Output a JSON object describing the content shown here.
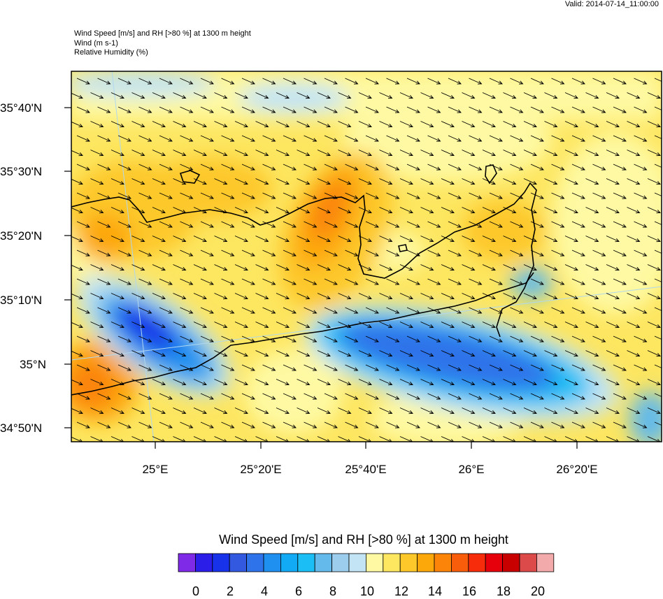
{
  "valid_label": "Valid: 2014-07-14_11:00:00",
  "header": {
    "line1": "Wind Speed [m/s] and RH [>80 %] at 1300 m height",
    "line2": "Wind   (m s-1)",
    "line3": "Relative Humidity   (%)"
  },
  "axes": {
    "lat_labels": [
      "35°40'N",
      "35°30'N",
      "35°20'N",
      "35°10'N",
      "35°N",
      "34°50'N"
    ],
    "lon_labels": [
      "25°E",
      "25°20'E",
      "25°40'E",
      "26°E",
      "26°20'E"
    ]
  },
  "colorbar": {
    "title": "Wind Speed [m/s] and RH [>80 %] at 1300 m height",
    "labels": [
      "0",
      "2",
      "4",
      "6",
      "8",
      "10",
      "12",
      "14",
      "16",
      "18",
      "20"
    ],
    "colors": [
      "#7f2ae6",
      "#2b1ee8",
      "#1732e8",
      "#3359e0",
      "#2f73ea",
      "#1f8ff0",
      "#13aaf5",
      "#1cbff5",
      "#64baea",
      "#9ccdec",
      "#c2e4f4",
      "#fef9a2",
      "#fde660",
      "#fdc82a",
      "#fda80a",
      "#fb8409",
      "#f85d0c",
      "#f62c0b",
      "#e6000b",
      "#c80000",
      "#dd4a4a",
      "#f3aaaa"
    ]
  },
  "colors": {
    "coastline": "#000000",
    "wind_arrows": "#000000",
    "gridline": "#b0d8ee"
  }
}
